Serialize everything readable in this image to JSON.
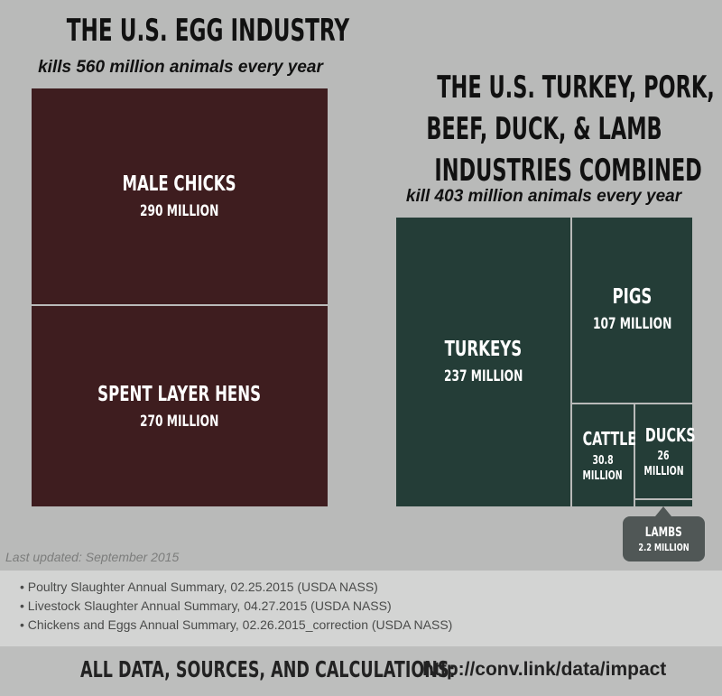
{
  "left": {
    "title": "THE U.S. EGG INDUSTRY",
    "subtitle": "kills 560 million animals every year"
  },
  "right": {
    "title_lines": [
      "THE U.S. TURKEY, PORK,",
      "BEEF, DUCK, & LAMB",
      "INDUSTRIES COMBINED"
    ],
    "subtitle": "kill 403 million animals every year"
  },
  "chart_data": [
    {
      "type": "treemap",
      "title": "THE U.S. EGG INDUSTRY",
      "unit": "million",
      "items": [
        {
          "label": "MALE CHICKS",
          "value_text": "290 MILLION",
          "value": 290
        },
        {
          "label": "SPENT LAYER HENS",
          "value_text": "270 MILLION",
          "value": 270
        }
      ],
      "color": "#3e1d1f"
    },
    {
      "type": "treemap",
      "title": "THE U.S. TURKEY, PORK, BEEF, DUCK, & LAMB INDUSTRIES COMBINED",
      "unit": "million",
      "items": [
        {
          "label": "TURKEYS",
          "value_text": "237 MILLION",
          "value": 237
        },
        {
          "label": "PIGS",
          "value_text": "107 MILLION",
          "value": 107
        },
        {
          "label": "CATTLE",
          "value_text_lines": [
            "30.8",
            "MILLION"
          ],
          "value": 30.8
        },
        {
          "label": "DUCKS",
          "value_text_lines": [
            "26",
            "MILLION"
          ],
          "value": 26
        },
        {
          "label": "LAMBS",
          "value_text": "2.2 MILLION",
          "value": 2.2
        }
      ],
      "color": "#243d37"
    }
  ],
  "updated": "Last updated: September 2015",
  "sources": [
    "• Poultry Slaughter Annual Summary, 02.25.2015 (USDA NASS)",
    "• Livestock Slaughter Annual Summary, 04.27.2015 (USDA NASS)",
    "• Chickens and Eggs Annual Summary, 02.26.2015_correction (USDA NASS)"
  ],
  "footer": {
    "label": "ALL DATA, SOURCES, AND CALCULATIONS:",
    "link": "http://conv.link/data/impact"
  },
  "colors": {
    "background": "#b9bab9",
    "egg": "#3e1d1f",
    "meat": "#243d37",
    "callout": "#505756"
  }
}
